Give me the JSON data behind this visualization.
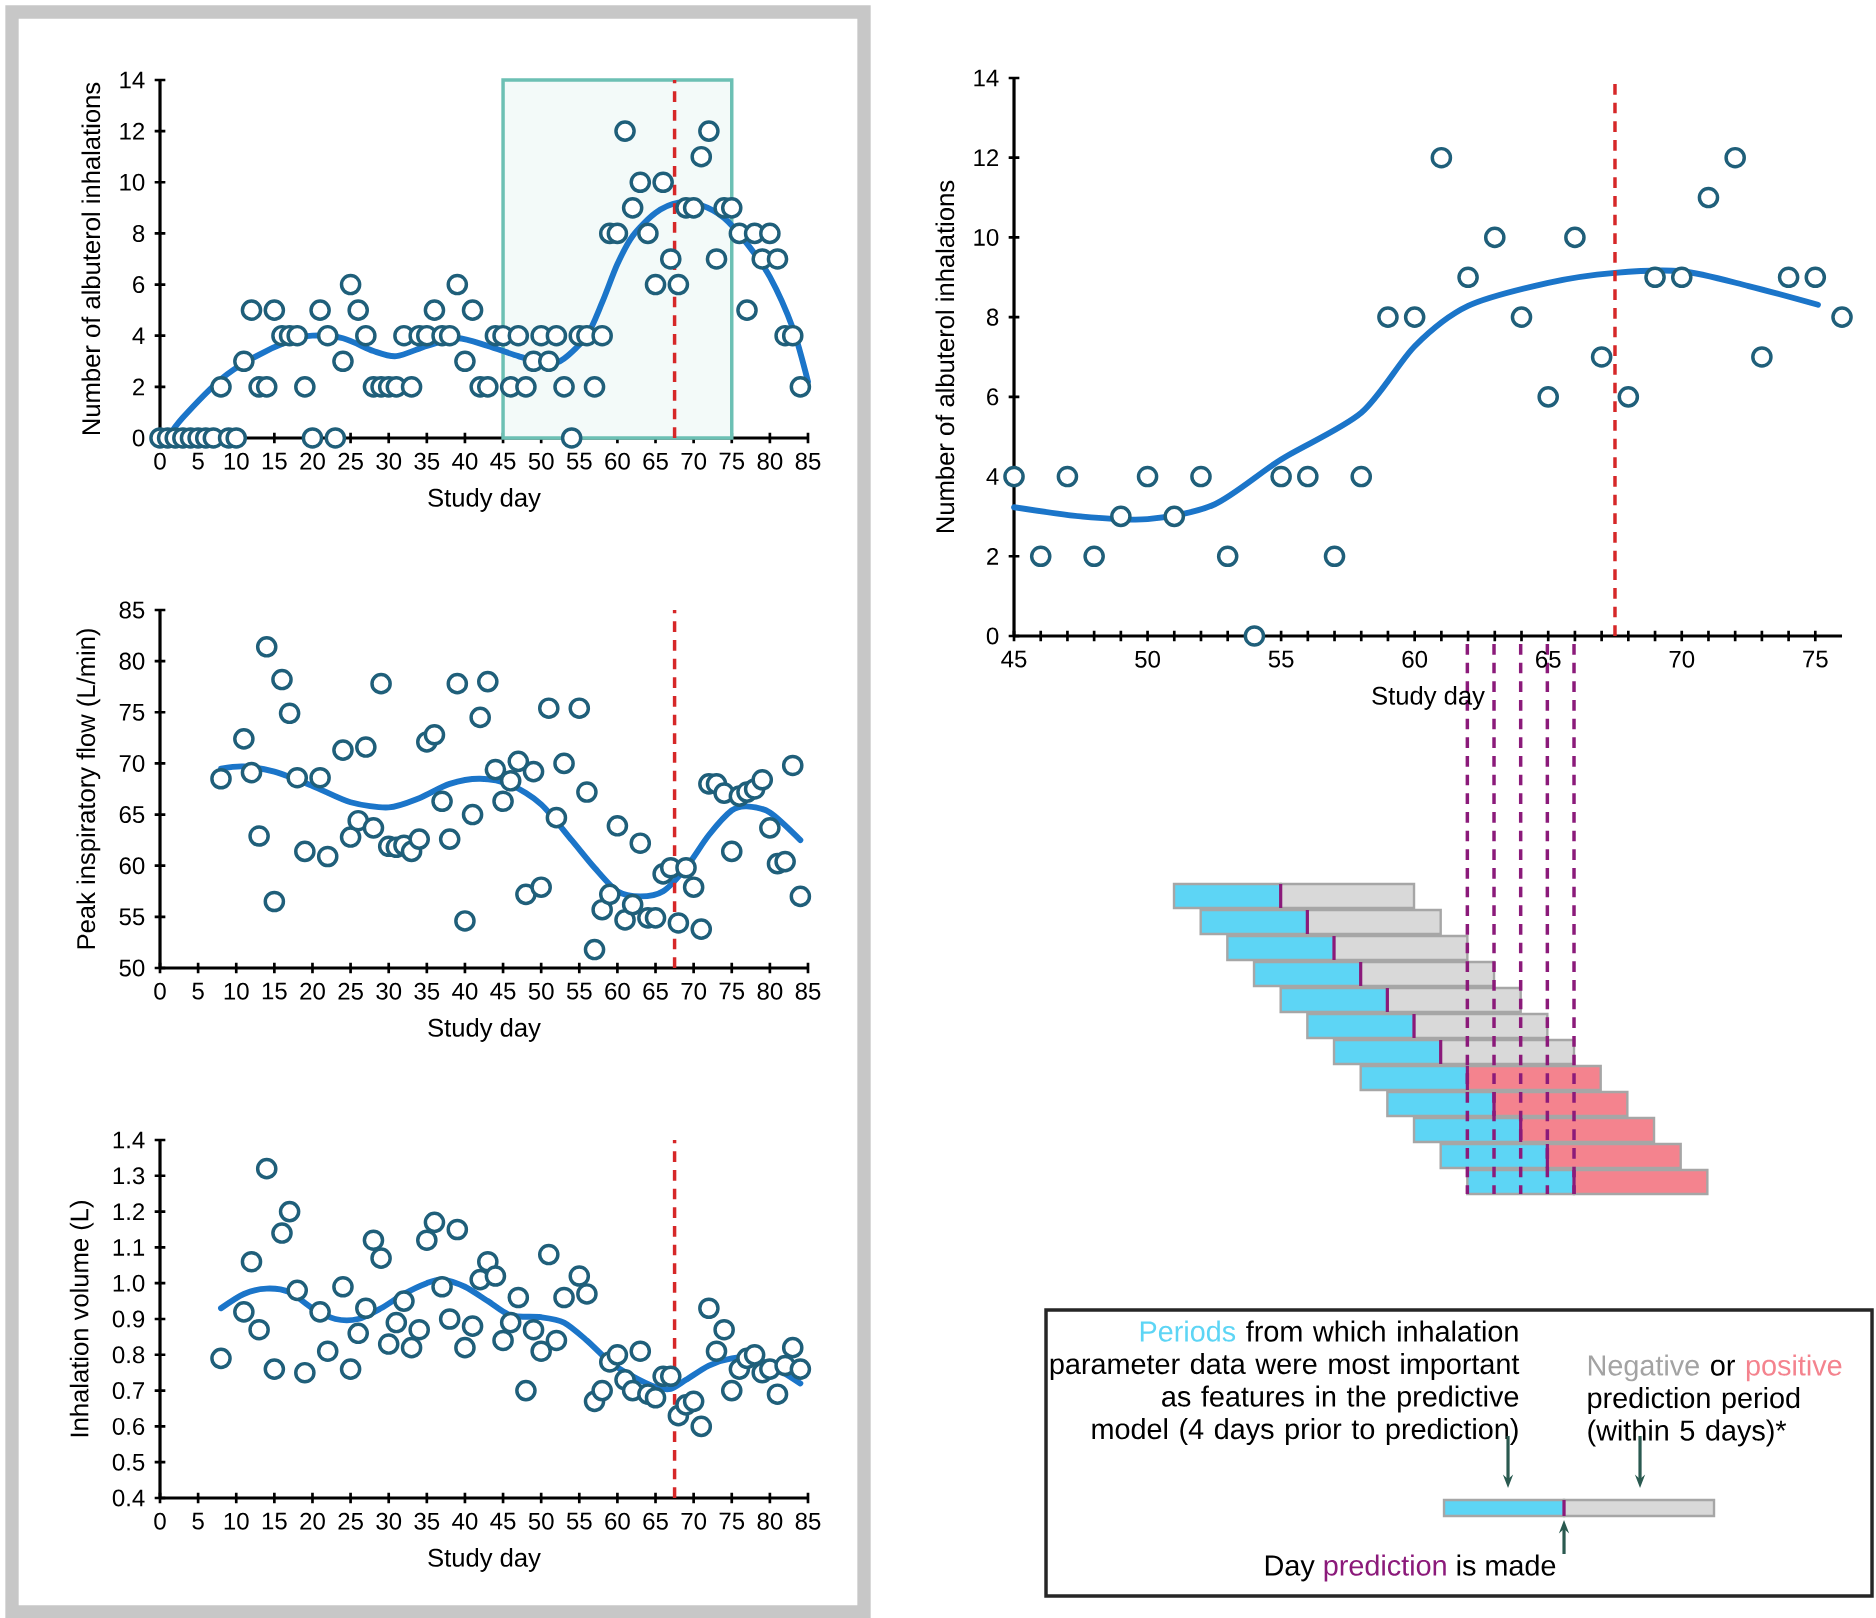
{
  "chart_data": [
    {
      "type": "scatter",
      "xlabel": "Study day",
      "ylabel": "Number of albuterol inhalations",
      "xlim": [
        0,
        85
      ],
      "ylim": [
        0,
        14
      ],
      "xticks": [
        0,
        5,
        10,
        15,
        20,
        25,
        30,
        35,
        40,
        45,
        50,
        55,
        60,
        65,
        70,
        75,
        80,
        85
      ],
      "yticks": [
        0,
        2,
        4,
        6,
        8,
        10,
        12,
        14
      ],
      "series": [
        {
          "type": "scatter",
          "marker": "circle",
          "color": "#1f5f7a",
          "x": [
            0,
            1,
            2,
            3,
            4,
            5,
            6,
            7,
            8,
            9,
            10,
            11,
            12,
            13,
            14,
            15,
            16,
            17,
            18,
            19,
            20,
            21,
            22,
            23,
            24,
            25,
            26,
            27,
            28,
            29,
            30,
            31,
            32,
            33,
            34,
            35,
            36,
            37,
            38,
            39,
            40,
            41,
            42,
            43,
            44,
            45,
            46,
            47,
            48,
            49,
            50,
            51,
            52,
            53,
            54,
            55,
            56,
            57,
            58,
            59,
            60,
            61,
            62,
            63,
            64,
            65,
            66,
            67,
            68,
            69,
            70,
            71,
            72,
            73,
            74,
            75,
            76,
            77,
            78,
            79,
            80,
            81,
            82,
            83,
            84
          ],
          "values": [
            0,
            0,
            0,
            0,
            0,
            0,
            0,
            0,
            2,
            0,
            0,
            3,
            5,
            2,
            2,
            5,
            4,
            4,
            4,
            2,
            0,
            5,
            4,
            0,
            3,
            6,
            5,
            4,
            2,
            2,
            2,
            2,
            4,
            2,
            4,
            4,
            5,
            4,
            4,
            6,
            3,
            5,
            2,
            2,
            4,
            4,
            2,
            4,
            2,
            3,
            4,
            3,
            4,
            2,
            0,
            4,
            4,
            2,
            4,
            8,
            8,
            12,
            9,
            10,
            8,
            6,
            10,
            7,
            6,
            9,
            9,
            11,
            12,
            7,
            9,
            9,
            8,
            5,
            8,
            7,
            8,
            7,
            4,
            4,
            2
          ]
        },
        {
          "type": "line",
          "marker": "none",
          "color": "#1b75c9",
          "x": [
            1,
            3,
            8,
            12,
            17,
            20,
            24,
            28,
            31,
            35,
            39,
            43,
            47,
            51,
            53,
            56,
            58,
            60,
            62,
            65,
            68,
            71,
            74,
            77,
            80,
            83,
            85
          ],
          "values": [
            0,
            0.8,
            2.3,
            3.1,
            3.8,
            4.0,
            3.9,
            3.4,
            3.2,
            3.6,
            3.9,
            3.6,
            3.2,
            2.9,
            3.1,
            4.0,
            5.3,
            6.8,
            7.9,
            8.8,
            9.2,
            9.1,
            8.6,
            7.6,
            6.3,
            4.3,
            2.2
          ]
        }
      ],
      "bands": [
        {
          "axis": "x",
          "from": 45,
          "to": 75,
          "color": "#6cc0b4"
        }
      ],
      "ref_lines": [
        {
          "axis": "x",
          "value": 67.5,
          "color": "#d62728",
          "line_style": "dashed"
        }
      ]
    },
    {
      "type": "scatter",
      "xlabel": "Study day",
      "ylabel": "Peak inspiratory flow (L/min)",
      "xlim": [
        0,
        85
      ],
      "ylim": [
        50,
        85
      ],
      "xticks": [
        0,
        5,
        10,
        15,
        20,
        25,
        30,
        35,
        40,
        45,
        50,
        55,
        60,
        65,
        70,
        75,
        80,
        85
      ],
      "yticks": [
        50,
        55,
        60,
        65,
        70,
        75,
        80,
        85
      ],
      "series": [
        {
          "type": "scatter",
          "marker": "circle",
          "color": "#1f5f7a",
          "x": [
            8,
            11,
            12,
            13,
            14,
            15,
            16,
            17,
            18,
            19,
            21,
            22,
            24,
            25,
            26,
            27,
            28,
            29,
            30,
            31,
            32,
            33,
            34,
            35,
            36,
            37,
            38,
            39,
            40,
            41,
            42,
            43,
            44,
            45,
            46,
            47,
            48,
            49,
            50,
            51,
            52,
            53,
            55,
            56,
            57,
            58,
            59,
            60,
            61,
            62,
            63,
            64,
            65,
            66,
            67,
            68,
            69,
            70,
            71,
            72,
            73,
            74,
            75,
            76,
            77,
            78,
            79,
            80,
            81,
            82,
            83,
            84
          ],
          "values": [
            68.5,
            72.4,
            69.1,
            62.9,
            81.4,
            56.5,
            78.2,
            74.9,
            68.6,
            61.4,
            68.6,
            60.9,
            71.3,
            62.8,
            64.4,
            71.6,
            63.7,
            77.8,
            61.9,
            61.8,
            62.0,
            61.4,
            62.6,
            72.1,
            72.8,
            66.3,
            62.6,
            77.8,
            54.6,
            65.0,
            74.5,
            78.0,
            69.4,
            66.3,
            68.3,
            70.2,
            57.2,
            69.2,
            57.9,
            75.4,
            64.7,
            70.0,
            75.4,
            67.2,
            51.8,
            55.7,
            57.2,
            63.9,
            54.7,
            56.2,
            62.2,
            54.9,
            54.9,
            59.2,
            59.8,
            54.4,
            59.8,
            57.9,
            53.8,
            68.0,
            68.0,
            67.1,
            61.4,
            66.8,
            67.2,
            67.5,
            68.4,
            63.7,
            60.2,
            60.4,
            69.8,
            57.0
          ]
        },
        {
          "type": "line",
          "marker": "none",
          "color": "#1b75c9",
          "x": [
            8,
            11,
            15,
            20,
            25,
            30,
            34,
            38,
            42,
            46,
            50,
            54,
            57,
            60,
            63,
            66,
            69,
            72,
            75,
            77,
            80,
            84
          ],
          "values": [
            69.5,
            69.7,
            69.2,
            67.8,
            66.2,
            65.7,
            66.6,
            68.0,
            68.5,
            67.9,
            66.0,
            62.5,
            59.8,
            57.5,
            57.0,
            57.5,
            59.8,
            63.0,
            65.4,
            65.8,
            65.2,
            62.5
          ]
        }
      ],
      "ref_lines": [
        {
          "axis": "x",
          "value": 67.5,
          "color": "#d62728",
          "line_style": "dashed"
        }
      ]
    },
    {
      "type": "scatter",
      "xlabel": "Study day",
      "ylabel": "Inhalation volume (L)",
      "xlim": [
        0,
        85
      ],
      "ylim": [
        0.4,
        1.4
      ],
      "xticks": [
        0,
        5,
        10,
        15,
        20,
        25,
        30,
        35,
        40,
        45,
        50,
        55,
        60,
        65,
        70,
        75,
        80,
        85
      ],
      "yticks": [
        0.4,
        0.5,
        0.6,
        0.7,
        0.8,
        0.9,
        {
          "value": 1,
          "label": "1.0"
        },
        1.1,
        1.2,
        1.3,
        1.4
      ],
      "series": [
        {
          "type": "scatter",
          "marker": "circle",
          "color": "#1f5f7a",
          "x": [
            8,
            11,
            12,
            13,
            14,
            15,
            16,
            17,
            18,
            19,
            21,
            22,
            24,
            25,
            26,
            27,
            28,
            29,
            30,
            31,
            32,
            33,
            34,
            35,
            36,
            37,
            38,
            39,
            40,
            41,
            42,
            43,
            44,
            45,
            46,
            47,
            48,
            49,
            50,
            51,
            52,
            53,
            55,
            56,
            57,
            58,
            59,
            60,
            61,
            62,
            63,
            64,
            65,
            66,
            67,
            68,
            69,
            70,
            71,
            72,
            73,
            74,
            75,
            76,
            77,
            78,
            79,
            80,
            81,
            82,
            83,
            84
          ],
          "values": [
            0.79,
            0.92,
            1.06,
            0.87,
            1.32,
            0.76,
            1.14,
            1.2,
            0.98,
            0.75,
            0.92,
            0.81,
            0.99,
            0.76,
            0.86,
            0.93,
            1.12,
            1.07,
            0.83,
            0.89,
            0.95,
            0.82,
            0.87,
            1.12,
            1.17,
            0.99,
            0.9,
            1.15,
            0.82,
            0.88,
            1.01,
            1.06,
            1.02,
            0.84,
            0.89,
            0.96,
            0.7,
            0.87,
            0.81,
            1.08,
            0.84,
            0.96,
            1.02,
            0.97,
            0.67,
            0.7,
            0.78,
            0.8,
            0.73,
            0.7,
            0.81,
            0.69,
            0.68,
            0.74,
            0.74,
            0.63,
            0.66,
            0.67,
            0.6,
            0.93,
            0.81,
            0.87,
            0.7,
            0.76,
            0.79,
            0.8,
            0.75,
            0.76,
            0.69,
            0.77,
            0.82,
            0.76
          ]
        },
        {
          "type": "line",
          "marker": "none",
          "color": "#1b75c9",
          "x": [
            8,
            11,
            14,
            17,
            20,
            23,
            26,
            29,
            32,
            35,
            37,
            40,
            43,
            46,
            50,
            53,
            56,
            59,
            62,
            65,
            67,
            69,
            72,
            75,
            78,
            81,
            84
          ],
          "values": [
            0.93,
            0.97,
            0.985,
            0.975,
            0.93,
            0.9,
            0.9,
            0.93,
            0.97,
            1.0,
            1.01,
            0.99,
            0.95,
            0.91,
            0.905,
            0.89,
            0.84,
            0.78,
            0.74,
            0.71,
            0.705,
            0.73,
            0.77,
            0.79,
            0.79,
            0.76,
            0.72
          ]
        }
      ],
      "ref_lines": [
        {
          "axis": "x",
          "value": 67.5,
          "color": "#d62728",
          "line_style": "dashed"
        }
      ]
    },
    {
      "type": "scatter",
      "xlabel": "Study day",
      "ylabel": "Number of albuterol inhalations",
      "xlim": [
        45,
        76
      ],
      "ylim": [
        0,
        14
      ],
      "xticks": [
        45,
        {
          "value": 46,
          "label": null
        },
        {
          "value": 47,
          "label": null
        },
        {
          "value": 48,
          "label": null
        },
        {
          "value": 49,
          "label": null
        },
        50,
        {
          "value": 51,
          "label": null
        },
        {
          "value": 52,
          "label": null
        },
        {
          "value": 53,
          "label": null
        },
        {
          "value": 54,
          "label": null
        },
        55,
        {
          "value": 56,
          "label": null
        },
        {
          "value": 57,
          "label": null
        },
        {
          "value": 58,
          "label": null
        },
        {
          "value": 59,
          "label": null
        },
        60,
        {
          "value": 61,
          "label": null
        },
        {
          "value": 62,
          "label": null
        },
        {
          "value": 63,
          "label": null
        },
        {
          "value": 64,
          "label": null
        },
        65,
        {
          "value": 66,
          "label": null
        },
        {
          "value": 67,
          "label": null
        },
        {
          "value": 68,
          "label": null
        },
        {
          "value": 69,
          "label": null
        },
        70,
        {
          "value": 71,
          "label": null
        },
        {
          "value": 72,
          "label": null
        },
        {
          "value": 73,
          "label": null
        },
        {
          "value": 74,
          "label": null
        },
        75
      ],
      "yticks": [
        0,
        2,
        4,
        6,
        8,
        10,
        12,
        14
      ],
      "series": [
        {
          "type": "scatter",
          "marker": "circle",
          "color": "#1f5f7a",
          "x": [
            45,
            46,
            47,
            48,
            49,
            50,
            51,
            52,
            53,
            54,
            55,
            56,
            57,
            58,
            59,
            60,
            61,
            62,
            63,
            64,
            65,
            66,
            67,
            68,
            69,
            70,
            71,
            72,
            73,
            74,
            75,
            76
          ],
          "values": [
            4,
            2,
            4,
            2,
            3,
            4,
            3,
            4,
            2,
            0,
            4,
            4,
            2,
            4,
            8,
            8,
            12,
            9,
            10,
            8,
            6,
            10,
            7,
            6,
            9,
            9,
            11,
            12,
            7,
            9,
            9,
            8
          ]
        },
        {
          "type": "line",
          "marker": "none",
          "color": "#1b75c9",
          "x": [
            45,
            47.5,
            50,
            52.5,
            55,
            58,
            60,
            62,
            65,
            67.5,
            70,
            72.5,
            75.1
          ],
          "values": [
            3.23,
            3.0,
            2.93,
            3.3,
            4.43,
            5.6,
            7.27,
            8.28,
            8.86,
            9.11,
            9.15,
            8.78,
            8.31
          ]
        }
      ],
      "ref_lines": [
        {
          "axis": "x",
          "value": 67.5,
          "color": "#d62728",
          "line_style": "dashed"
        }
      ]
    },
    {
      "type": "other",
      "annotations": [
        "Periods",
        "from which inhalation parameter data were most important as features in the predictive model (4 days prior to prediction)",
        "Negative",
        "or",
        "positive",
        "prediction period (within 5 days)*",
        "Day",
        "prediction",
        "is made"
      ]
    }
  ]
}
